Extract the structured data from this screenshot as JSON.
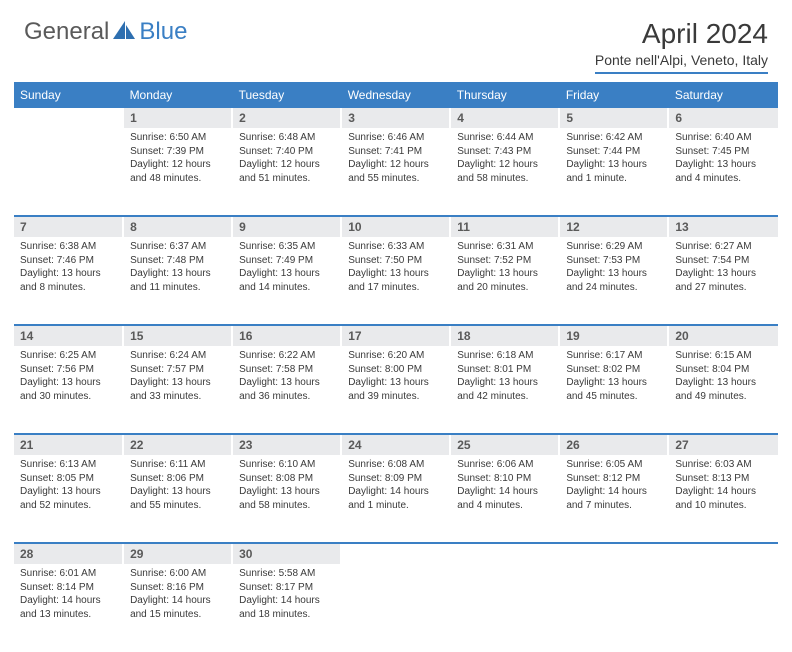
{
  "brand": {
    "general": "General",
    "blue": "Blue"
  },
  "title": "April 2024",
  "location": "Ponte nell'Alpi, Veneto, Italy",
  "colors": {
    "accent": "#3a7fc4",
    "header_bg": "#3a7fc4",
    "header_text": "#ffffff",
    "daynum_bg": "#e9eaec",
    "text": "#3a3a3a",
    "logo_gray": "#5a5a5a"
  },
  "weekdays": [
    "Sunday",
    "Monday",
    "Tuesday",
    "Wednesday",
    "Thursday",
    "Friday",
    "Saturday"
  ],
  "weeks": [
    [
      null,
      {
        "n": "1",
        "sr": "Sunrise: 6:50 AM",
        "ss": "Sunset: 7:39 PM",
        "dl": "Daylight: 12 hours and 48 minutes."
      },
      {
        "n": "2",
        "sr": "Sunrise: 6:48 AM",
        "ss": "Sunset: 7:40 PM",
        "dl": "Daylight: 12 hours and 51 minutes."
      },
      {
        "n": "3",
        "sr": "Sunrise: 6:46 AM",
        "ss": "Sunset: 7:41 PM",
        "dl": "Daylight: 12 hours and 55 minutes."
      },
      {
        "n": "4",
        "sr": "Sunrise: 6:44 AM",
        "ss": "Sunset: 7:43 PM",
        "dl": "Daylight: 12 hours and 58 minutes."
      },
      {
        "n": "5",
        "sr": "Sunrise: 6:42 AM",
        "ss": "Sunset: 7:44 PM",
        "dl": "Daylight: 13 hours and 1 minute."
      },
      {
        "n": "6",
        "sr": "Sunrise: 6:40 AM",
        "ss": "Sunset: 7:45 PM",
        "dl": "Daylight: 13 hours and 4 minutes."
      }
    ],
    [
      {
        "n": "7",
        "sr": "Sunrise: 6:38 AM",
        "ss": "Sunset: 7:46 PM",
        "dl": "Daylight: 13 hours and 8 minutes."
      },
      {
        "n": "8",
        "sr": "Sunrise: 6:37 AM",
        "ss": "Sunset: 7:48 PM",
        "dl": "Daylight: 13 hours and 11 minutes."
      },
      {
        "n": "9",
        "sr": "Sunrise: 6:35 AM",
        "ss": "Sunset: 7:49 PM",
        "dl": "Daylight: 13 hours and 14 minutes."
      },
      {
        "n": "10",
        "sr": "Sunrise: 6:33 AM",
        "ss": "Sunset: 7:50 PM",
        "dl": "Daylight: 13 hours and 17 minutes."
      },
      {
        "n": "11",
        "sr": "Sunrise: 6:31 AM",
        "ss": "Sunset: 7:52 PM",
        "dl": "Daylight: 13 hours and 20 minutes."
      },
      {
        "n": "12",
        "sr": "Sunrise: 6:29 AM",
        "ss": "Sunset: 7:53 PM",
        "dl": "Daylight: 13 hours and 24 minutes."
      },
      {
        "n": "13",
        "sr": "Sunrise: 6:27 AM",
        "ss": "Sunset: 7:54 PM",
        "dl": "Daylight: 13 hours and 27 minutes."
      }
    ],
    [
      {
        "n": "14",
        "sr": "Sunrise: 6:25 AM",
        "ss": "Sunset: 7:56 PM",
        "dl": "Daylight: 13 hours and 30 minutes."
      },
      {
        "n": "15",
        "sr": "Sunrise: 6:24 AM",
        "ss": "Sunset: 7:57 PM",
        "dl": "Daylight: 13 hours and 33 minutes."
      },
      {
        "n": "16",
        "sr": "Sunrise: 6:22 AM",
        "ss": "Sunset: 7:58 PM",
        "dl": "Daylight: 13 hours and 36 minutes."
      },
      {
        "n": "17",
        "sr": "Sunrise: 6:20 AM",
        "ss": "Sunset: 8:00 PM",
        "dl": "Daylight: 13 hours and 39 minutes."
      },
      {
        "n": "18",
        "sr": "Sunrise: 6:18 AM",
        "ss": "Sunset: 8:01 PM",
        "dl": "Daylight: 13 hours and 42 minutes."
      },
      {
        "n": "19",
        "sr": "Sunrise: 6:17 AM",
        "ss": "Sunset: 8:02 PM",
        "dl": "Daylight: 13 hours and 45 minutes."
      },
      {
        "n": "20",
        "sr": "Sunrise: 6:15 AM",
        "ss": "Sunset: 8:04 PM",
        "dl": "Daylight: 13 hours and 49 minutes."
      }
    ],
    [
      {
        "n": "21",
        "sr": "Sunrise: 6:13 AM",
        "ss": "Sunset: 8:05 PM",
        "dl": "Daylight: 13 hours and 52 minutes."
      },
      {
        "n": "22",
        "sr": "Sunrise: 6:11 AM",
        "ss": "Sunset: 8:06 PM",
        "dl": "Daylight: 13 hours and 55 minutes."
      },
      {
        "n": "23",
        "sr": "Sunrise: 6:10 AM",
        "ss": "Sunset: 8:08 PM",
        "dl": "Daylight: 13 hours and 58 minutes."
      },
      {
        "n": "24",
        "sr": "Sunrise: 6:08 AM",
        "ss": "Sunset: 8:09 PM",
        "dl": "Daylight: 14 hours and 1 minute."
      },
      {
        "n": "25",
        "sr": "Sunrise: 6:06 AM",
        "ss": "Sunset: 8:10 PM",
        "dl": "Daylight: 14 hours and 4 minutes."
      },
      {
        "n": "26",
        "sr": "Sunrise: 6:05 AM",
        "ss": "Sunset: 8:12 PM",
        "dl": "Daylight: 14 hours and 7 minutes."
      },
      {
        "n": "27",
        "sr": "Sunrise: 6:03 AM",
        "ss": "Sunset: 8:13 PM",
        "dl": "Daylight: 14 hours and 10 minutes."
      }
    ],
    [
      {
        "n": "28",
        "sr": "Sunrise: 6:01 AM",
        "ss": "Sunset: 8:14 PM",
        "dl": "Daylight: 14 hours and 13 minutes."
      },
      {
        "n": "29",
        "sr": "Sunrise: 6:00 AM",
        "ss": "Sunset: 8:16 PM",
        "dl": "Daylight: 14 hours and 15 minutes."
      },
      {
        "n": "30",
        "sr": "Sunrise: 5:58 AM",
        "ss": "Sunset: 8:17 PM",
        "dl": "Daylight: 14 hours and 18 minutes."
      },
      null,
      null,
      null,
      null
    ]
  ]
}
